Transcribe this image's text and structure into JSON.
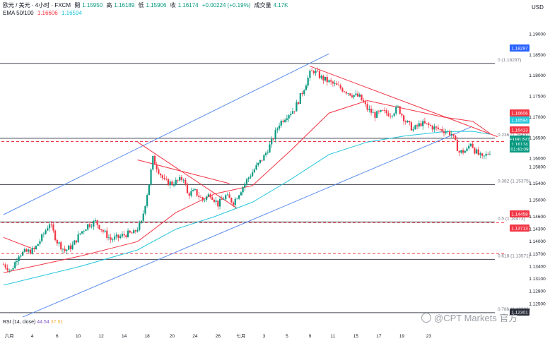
{
  "header": {
    "title": "欧元 / 美元 · 4小时 · FXCM",
    "open_label": "開",
    "open": "1.15950",
    "high_label": "高",
    "high": "1.16189",
    "low_label": "低",
    "low": "1.15906",
    "close_label": "收",
    "close": "1.16174",
    "change": "+0.00224 (+0.19%)",
    "volume_label": "成交量",
    "volume": "4.17K",
    "ema_label": "EMA 50/100",
    "ema50": "1.16606",
    "ema100": "1.16594"
  },
  "currency": "USD",
  "rsi": {
    "label": "RSI (14, close)",
    "value": "44.54",
    "ma": "37.61"
  },
  "watermark": "@CPT Markets 官方",
  "colors": {
    "up": "#089981",
    "down": "#f23645",
    "ema50": "#f23645",
    "ema100": "#26c6da",
    "channel": "#5b8def"
  },
  "chart_data": {
    "type": "candlestick",
    "symbol": "EURUSD",
    "timeframe": "4小时",
    "ylim": [
      1.1225,
      1.194
    ],
    "y_ticks": [
      "1.19000",
      "1.18500",
      "1.18000",
      "1.17500",
      "1.17000",
      "1.16500",
      "1.16000",
      "1.15800",
      "1.15400",
      "1.15000",
      "1.14600",
      "1.14300",
      "1.14000",
      "1.13700",
      "1.13400",
      "1.13100",
      "1.12800",
      "1.12500"
    ],
    "x_ticks": [
      "六月",
      "4",
      "6",
      "10",
      "12",
      "14",
      "18",
      "20",
      "24",
      "26",
      "七月",
      "3",
      "5",
      "9",
      "11",
      "15",
      "17",
      "19",
      "23"
    ],
    "price_labels": [
      {
        "text": "1.18297",
        "color": "#2962ff"
      },
      {
        "text": "1.16606",
        "color": "#f23645"
      },
      {
        "text": "1.16594",
        "color": "#26c6da"
      },
      {
        "text": "1.16413",
        "color": "#f23645"
      },
      {
        "text": "EURUSD",
        "color": "#089981"
      },
      {
        "text": "1.16174",
        "color": "#089981"
      },
      {
        "text": "01:40:09",
        "color": "#089981"
      },
      {
        "text": "1.14458",
        "color": "#f23645"
      },
      {
        "text": "1.13713",
        "color": "#f23645"
      },
      {
        "text": "1.12301",
        "color": "#2a2e39"
      }
    ],
    "fib_levels": [
      {
        "label": "0 (1.18297)",
        "value": 1.18297
      },
      {
        "label": "0.236 (1.16492)",
        "value": 1.16492
      },
      {
        "label": "0.382 (1.15375)",
        "value": 1.15375
      },
      {
        "label": "0.5 (1.14473)",
        "value": 1.14473
      },
      {
        "label": "0.618 (1.13571)",
        "value": 1.13571
      },
      {
        "label": "0.786 (1.12286)",
        "value": 1.12286
      }
    ],
    "horizontal_lines": [
      {
        "value": 1.16413,
        "style": "dashed",
        "color": "#f23645"
      },
      {
        "value": 1.14458,
        "style": "dashed",
        "color": "#f23645"
      },
      {
        "value": 1.13713,
        "style": "dashed",
        "color": "#f23645"
      }
    ],
    "anchors": [
      [
        0,
        1.1345
      ],
      [
        4,
        1.133
      ],
      [
        8,
        1.137
      ],
      [
        12,
        1.1375
      ],
      [
        16,
        1.138
      ],
      [
        20,
        1.141
      ],
      [
        24,
        1.1445
      ],
      [
        28,
        1.14
      ],
      [
        32,
        1.1378
      ],
      [
        36,
        1.139
      ],
      [
        40,
        1.142
      ],
      [
        44,
        1.144
      ],
      [
        48,
        1.1448
      ],
      [
        52,
        1.1425
      ],
      [
        56,
        1.1405
      ],
      [
        60,
        1.141
      ],
      [
        64,
        1.1418
      ],
      [
        68,
        1.142
      ],
      [
        72,
        1.1445
      ],
      [
        76,
        1.154
      ],
      [
        78,
        1.16
      ],
      [
        80,
        1.158
      ],
      [
        84,
        1.1545
      ],
      [
        88,
        1.154
      ],
      [
        92,
        1.1548
      ],
      [
        94,
        1.1555
      ],
      [
        96,
        1.1515
      ],
      [
        100,
        1.152
      ],
      [
        104,
        1.15
      ],
      [
        108,
        1.1515
      ],
      [
        112,
        1.149
      ],
      [
        116,
        1.151
      ],
      [
        120,
        1.1495
      ],
      [
        124,
        1.1525
      ],
      [
        128,
        1.1555
      ],
      [
        132,
        1.158
      ],
      [
        136,
        1.1605
      ],
      [
        140,
        1.164
      ],
      [
        144,
        1.1685
      ],
      [
        148,
        1.1705
      ],
      [
        152,
        1.172
      ],
      [
        156,
        1.176
      ],
      [
        160,
        1.1805
      ],
      [
        162,
        1.1812
      ],
      [
        166,
        1.1795
      ],
      [
        170,
        1.1785
      ],
      [
        174,
        1.1775
      ],
      [
        178,
        1.1765
      ],
      [
        182,
        1.1755
      ],
      [
        186,
        1.1748
      ],
      [
        190,
        1.172
      ],
      [
        194,
        1.1705
      ],
      [
        198,
        1.1712
      ],
      [
        202,
        1.1708
      ],
      [
        206,
        1.1722
      ],
      [
        210,
        1.169
      ],
      [
        214,
        1.167
      ],
      [
        218,
        1.1685
      ],
      [
        222,
        1.168
      ],
      [
        226,
        1.1672
      ],
      [
        230,
        1.1668
      ],
      [
        234,
        1.166
      ],
      [
        238,
        1.1615
      ],
      [
        242,
        1.162
      ],
      [
        244,
        1.164
      ],
      [
        246,
        1.162
      ],
      [
        250,
        1.16
      ],
      [
        254,
        1.1617
      ]
    ],
    "ema50_path": [
      [
        0,
        1.1325
      ],
      [
        40,
        1.1365
      ],
      [
        70,
        1.14
      ],
      [
        90,
        1.147
      ],
      [
        110,
        1.1515
      ],
      [
        130,
        1.1535
      ],
      [
        150,
        1.162
      ],
      [
        170,
        1.171
      ],
      [
        190,
        1.174
      ],
      [
        210,
        1.172
      ],
      [
        230,
        1.17
      ],
      [
        245,
        1.169
      ],
      [
        254,
        1.1661
      ]
    ],
    "ema100_path": [
      [
        0,
        1.1295
      ],
      [
        40,
        1.134
      ],
      [
        70,
        1.138
      ],
      [
        90,
        1.143
      ],
      [
        110,
        1.146
      ],
      [
        130,
        1.1495
      ],
      [
        150,
        1.155
      ],
      [
        170,
        1.161
      ],
      [
        190,
        1.164
      ],
      [
        210,
        1.1655
      ],
      [
        230,
        1.1665
      ],
      [
        245,
        1.1666
      ],
      [
        254,
        1.1659
      ]
    ],
    "trendlines": [
      {
        "color": "#5b8def",
        "points": [
          [
            0,
            1.1465
          ],
          [
            170,
            1.1853
          ]
        ]
      },
      {
        "color": "#5b8def",
        "points": [
          [
            10,
            1.1218
          ],
          [
            244,
            1.1676
          ]
        ]
      },
      {
        "color": "#f23645",
        "points": [
          [
            160,
            1.1823
          ],
          [
            258,
            1.1653
          ]
        ]
      },
      {
        "color": "#f23645",
        "points": [
          [
            70,
            1.1597
          ],
          [
            118,
            1.154
          ]
        ]
      },
      {
        "color": "#f23645",
        "points": [
          [
            70,
            1.164
          ],
          [
            122,
            1.148
          ]
        ]
      },
      {
        "color": "#f23645",
        "points": [
          [
            0,
            1.141
          ],
          [
            14,
            1.1385
          ]
        ]
      }
    ],
    "grid": false,
    "legend": "top-left"
  }
}
